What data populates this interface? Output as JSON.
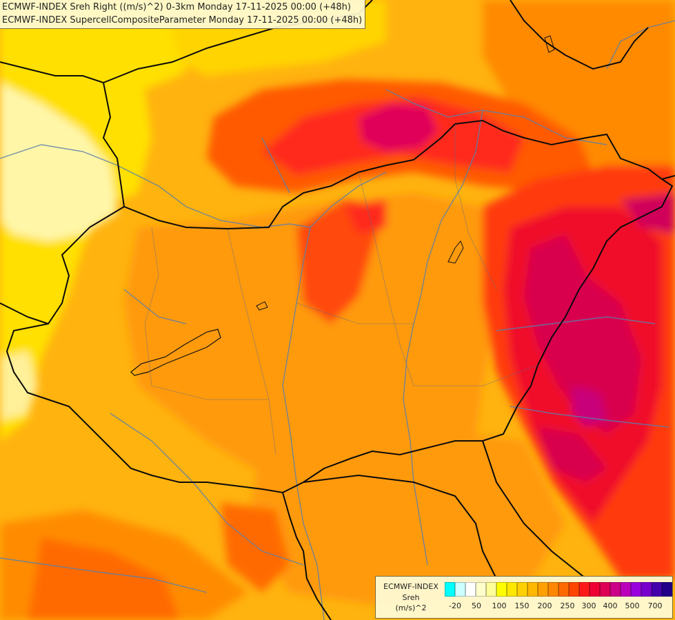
{
  "header": {
    "line1": "ECMWF-INDEX Sreh Right ((m/s)^2) 0-3km Monday 17-11-2025 00:00 (+48h)",
    "line2": "ECMWF-INDEX SupercellCompositeParameter Monday 17-11-2025 00:00 (+48h)"
  },
  "legend": {
    "title": "ECMWF-INDEX",
    "parameter": "Sreh",
    "unit": "(m/s)^2",
    "colors": [
      "#00ffff",
      "#ccffff",
      "#ffffff",
      "#ffffcc",
      "#ffff99",
      "#ffff00",
      "#ffe800",
      "#ffd000",
      "#ffb800",
      "#ffa000",
      "#ff8800",
      "#ff6a00",
      "#ff4400",
      "#ff1a1a",
      "#ee0033",
      "#dd0055",
      "#cc0088",
      "#bb00bb",
      "#9900dd",
      "#7700cc",
      "#4400aa",
      "#220088"
    ],
    "ticks": [
      "-20",
      "50",
      "100",
      "150",
      "200",
      "250",
      "300",
      "400",
      "500",
      "700"
    ]
  },
  "map": {
    "fields": [
      {
        "label": "low",
        "color": "#fff9a0"
      },
      {
        "label": "yellow",
        "color": "#ffe000"
      },
      {
        "label": "yellow-orange",
        "color": "#ffc400"
      },
      {
        "label": "orange",
        "color": "#ffa11a"
      },
      {
        "label": "dark-orange",
        "color": "#ff7e00"
      },
      {
        "label": "red-orange",
        "color": "#ff5a00"
      },
      {
        "label": "red",
        "color": "#ff2a1a"
      },
      {
        "label": "crimson",
        "color": "#e8003a"
      },
      {
        "label": "magenta",
        "color": "#d40066"
      }
    ],
    "border_color": "#000000",
    "river_color": "#5a7fa8"
  }
}
